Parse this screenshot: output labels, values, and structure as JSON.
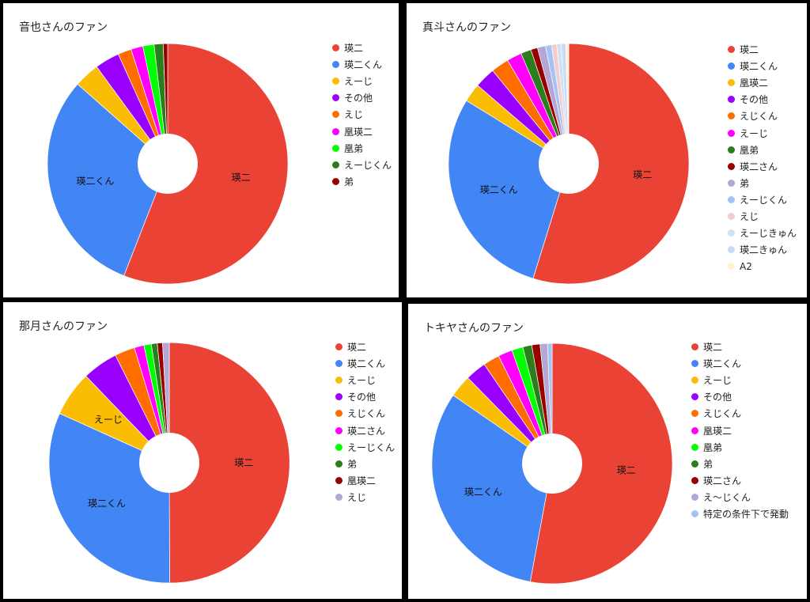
{
  "chart_data": [
    {
      "type": "pie",
      "title": "音也さんのファン",
      "categories": [
        "瑛二",
        "瑛二くん",
        "えーじ",
        "その他",
        "えじ",
        "凰瑛二",
        "凰弟",
        "えーじくん",
        "弟"
      ],
      "values": [
        55.6,
        30.4,
        3.4,
        3.3,
        1.8,
        1.6,
        1.5,
        1.2,
        0.6
      ],
      "colors": [
        "#ea4335",
        "#4285f4",
        "#fbbc04",
        "#9900ff",
        "#ff6d01",
        "#ff00ff",
        "#00ff00",
        "#2a7e1b",
        "#980000"
      ],
      "slice_labels": [
        "瑛二",
        "瑛二くん",
        "",
        "",
        "",
        "",
        "",
        "",
        ""
      ],
      "donut": true,
      "legend_position": "right"
    },
    {
      "type": "pie",
      "title": "真斗さんのファン",
      "categories": [
        "瑛二",
        "瑛二くん",
        "凰瑛二",
        "その他",
        "えじくん",
        "えーじ",
        "凰弟",
        "瑛二さん",
        "弟",
        "えーじくん",
        "えじ",
        "えーじきゅん",
        "瑛二きゅん",
        "A2"
      ],
      "values": [
        54.8,
        29.0,
        2.5,
        2.8,
        2.4,
        2.0,
        1.4,
        0.9,
        1.1,
        0.8,
        0.7,
        0.6,
        0.6,
        0.4
      ],
      "colors": [
        "#ea4335",
        "#4285f4",
        "#fbbc04",
        "#9900ff",
        "#ff6d01",
        "#ff00ff",
        "#2a7e1b",
        "#980000",
        "#b4a7d6",
        "#a4c2f4",
        "#f4cccc",
        "#cfe2f3",
        "#c9daf8",
        "#fff2cc"
      ],
      "slice_labels": [
        "瑛二",
        "瑛二くん",
        "",
        "",
        "",
        "",
        "",
        "",
        "",
        "",
        "",
        "",
        "",
        ""
      ],
      "donut": true,
      "legend_position": "right"
    },
    {
      "type": "pie",
      "title": "那月さんのファン",
      "categories": [
        "瑛二",
        "瑛二くん",
        "えーじ",
        "その他",
        "えじくん",
        "瑛二さん",
        "えーじくん",
        "弟",
        "凰瑛二",
        "えじ"
      ],
      "values": [
        50.0,
        31.8,
        6.1,
        4.8,
        2.7,
        1.3,
        1.0,
        0.8,
        0.7,
        0.9
      ],
      "colors": [
        "#ea4335",
        "#4285f4",
        "#fbbc04",
        "#9900ff",
        "#ff6d01",
        "#ff00ff",
        "#00ff00",
        "#2a7e1b",
        "#980000",
        "#b4a7d6"
      ],
      "slice_labels": [
        "瑛二",
        "瑛二くん",
        "えーじ",
        "",
        "",
        "",
        "",
        "",
        "",
        ""
      ],
      "donut": true,
      "legend_position": "right"
    },
    {
      "type": "pie",
      "title": "トキヤさんのファン",
      "categories": [
        "瑛二",
        "瑛二くん",
        "えーじ",
        "その他",
        "えじくん",
        "凰瑛二",
        "凰弟",
        "弟",
        "瑛二さん",
        "え〜じくん",
        "特定の条件下で発動"
      ],
      "values": [
        52.6,
        31.5,
        3.0,
        2.8,
        2.2,
        1.9,
        1.5,
        1.2,
        1.1,
        1.0,
        0.6
      ],
      "colors": [
        "#ea4335",
        "#4285f4",
        "#fbbc04",
        "#9900ff",
        "#ff6d01",
        "#ff00ff",
        "#00ff00",
        "#2a7e1b",
        "#980000",
        "#b4a7d6",
        "#a4c2f4"
      ],
      "slice_labels": [
        "瑛二",
        "瑛二くん",
        "",
        "",
        "",
        "",
        "",
        "",
        "",
        "",
        ""
      ],
      "donut": true,
      "legend_position": "right"
    }
  ]
}
